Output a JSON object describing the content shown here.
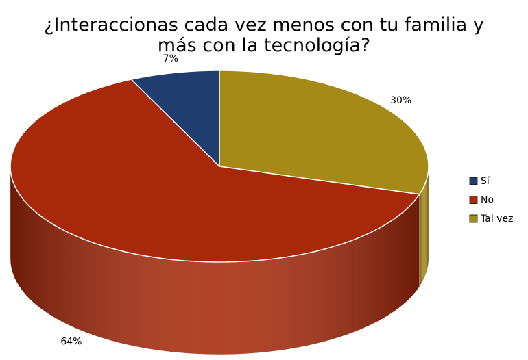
{
  "chart_data": {
    "type": "pie",
    "title": "¿Interaccionas cada vez menos con tu familia y más con la tecnología?",
    "categories": [
      "Sí",
      "No",
      "Tal vez"
    ],
    "values": [
      7,
      64,
      30
    ],
    "value_labels": [
      "7%",
      "64%",
      "30%"
    ],
    "colors": [
      "#1f3d6e",
      "#a8290a",
      "#a68a17"
    ],
    "legend": "right"
  }
}
